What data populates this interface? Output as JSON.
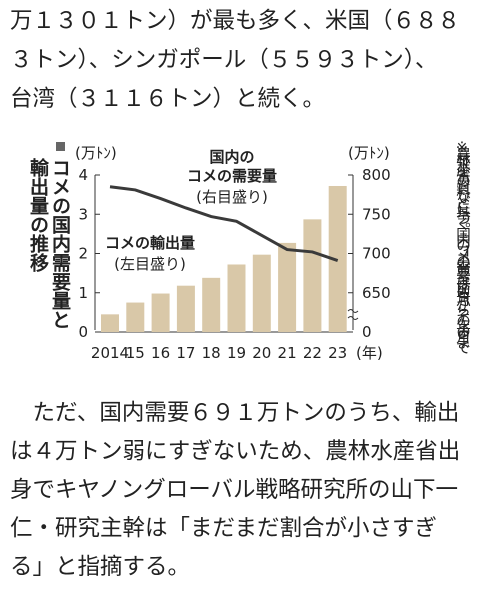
{
  "paragraph_top": [
    "万１３０１トン）が最も多く、米国（６８８",
    "３トン）、シンガポール（５５９３トン）、",
    "台湾（３１１６トン）と続く。"
  ],
  "chart_data": {
    "type": "bar_line",
    "title": [
      "コメの国内需要量と",
      "輸出量の推移"
    ],
    "y_unit": "(万ﾄﾝ)",
    "y2_unit": "(万ﾄﾝ)",
    "x_unit": "(年)",
    "categories": [
      "2014",
      "15",
      "16",
      "17",
      "18",
      "19",
      "20",
      "21",
      "22",
      "23"
    ],
    "series": [
      {
        "name": "コメの輸出量",
        "sub": "(左目盛り)",
        "kind": "bar",
        "color": "#d9c8a8",
        "values": [
          0.45,
          0.75,
          0.98,
          1.18,
          1.38,
          1.72,
          1.97,
          2.27,
          2.87,
          3.72
        ]
      },
      {
        "name": "国内の\nコメの需要量",
        "sub": "(右目盛り)",
        "kind": "line",
        "axis": "y2",
        "color": "#3a3a3a",
        "values": [
          785,
          781,
          770,
          758,
          747,
          741,
          723,
          705,
          702,
          691
        ]
      }
    ],
    "ylim": [
      0,
      4
    ],
    "yticks": [
      0,
      1,
      2,
      3,
      4
    ],
    "y2lim": [
      600,
      800
    ],
    "y2ticks": [
      {
        "value": 600,
        "label": "0"
      },
      650,
      700,
      750,
      800
    ],
    "note": "※農林水産省の資料などに基づく。国内のコメの需要量は前年7月からその年の6月まで"
  },
  "paragraph_bottom": [
    "　ただ、国内需要６９１万トンのうち、輸出",
    "は４万トン弱にすぎないため、農林水産省出",
    "身でキヤノングローバル戦略研究所の山下一",
    "仁・研究主幹は「まだまだ割合が小さすぎ",
    "る」と指摘する。"
  ]
}
